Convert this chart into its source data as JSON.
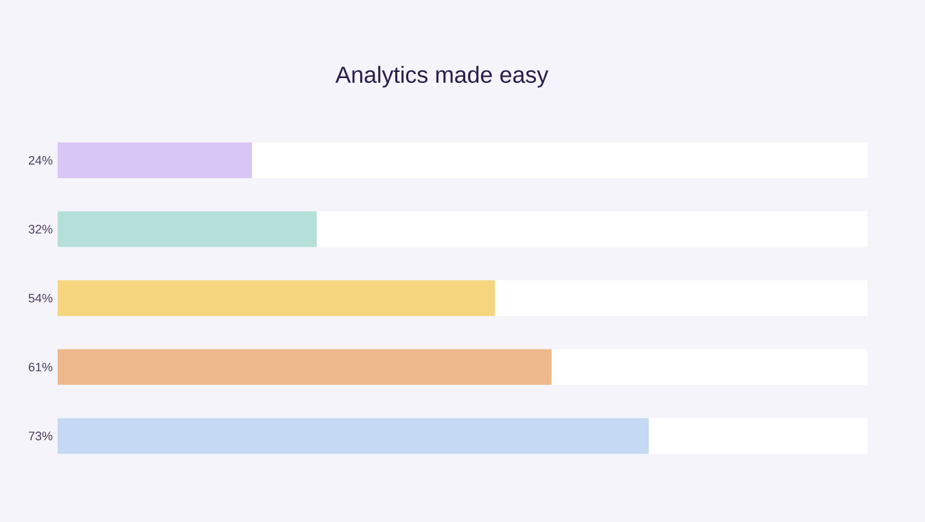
{
  "chart_data": {
    "type": "bar",
    "orientation": "horizontal",
    "stacked": true,
    "title": "Analytics made easy",
    "categories": [
      null,
      null,
      null,
      null,
      null
    ],
    "xlim": [
      0,
      100
    ],
    "series": [
      {
        "values": [
          24,
          32,
          54,
          61,
          73
        ],
        "colors": [
          "#d8c6f7",
          "#b5e0da",
          "#f5d57e",
          "#edb88b",
          "#c5d8f4"
        ],
        "value_labels": [
          "24%",
          "32%",
          "54%",
          "61%",
          "73%"
        ]
      },
      {
        "values": [
          76,
          68,
          46,
          39,
          27
        ],
        "color": "#ffffff"
      }
    ]
  }
}
